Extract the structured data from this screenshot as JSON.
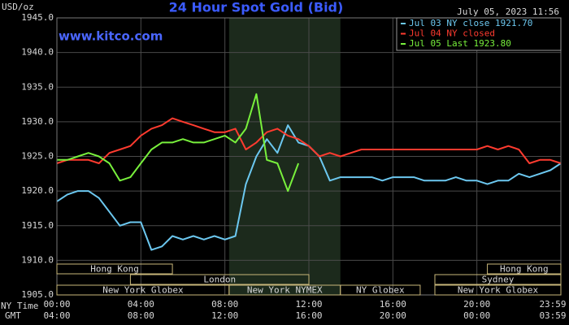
{
  "chart_data": {
    "type": "line",
    "title": "24 Hour Spot Gold (Bid)",
    "subtitle": "July 05, 2023 11:56",
    "y_label": "USD/oz",
    "watermark": "www.kitco.com",
    "x_row_labels": [
      "NY Time",
      "GMT"
    ],
    "xlim": [
      0,
      24
    ],
    "xticks": [
      {
        "value": 0,
        "label": "00:00"
      },
      {
        "value": 4,
        "label": "04:00"
      },
      {
        "value": 8,
        "label": "08:00"
      },
      {
        "value": 12,
        "label": "12:00"
      },
      {
        "value": 16,
        "label": "16:00"
      },
      {
        "value": 20,
        "label": "20:00"
      },
      {
        "value": 24,
        "label": "23:59"
      }
    ],
    "x2ticks": [
      {
        "value": 0,
        "label": "04:00"
      },
      {
        "value": 4,
        "label": "08:00"
      },
      {
        "value": 8,
        "label": "12:00"
      },
      {
        "value": 12,
        "label": "16:00"
      },
      {
        "value": 16,
        "label": "20:00"
      },
      {
        "value": 20,
        "label": "00:00"
      },
      {
        "value": 24,
        "label": "03:59"
      }
    ],
    "ylim": [
      1905,
      1945
    ],
    "yticks": [
      {
        "value": 1905,
        "label": "1905.0"
      },
      {
        "value": 1910,
        "label": "1910.0"
      },
      {
        "value": 1915,
        "label": "1915.0"
      },
      {
        "value": 1920,
        "label": "1920.0"
      },
      {
        "value": 1925,
        "label": "1925.0"
      },
      {
        "value": 1930,
        "label": "1930.0"
      },
      {
        "value": 1935,
        "label": "1935.0"
      },
      {
        "value": 1940,
        "label": "1940.0"
      },
      {
        "value": 1945,
        "label": "1945.0"
      }
    ],
    "grid": true,
    "legend": "top-right",
    "x": [
      0,
      0.5,
      1,
      1.5,
      2,
      2.5,
      3,
      3.5,
      4,
      4.5,
      5,
      5.5,
      6,
      6.5,
      7,
      7.5,
      8,
      8.5,
      9,
      9.5,
      10,
      10.5,
      11,
      11.5,
      12,
      12.5,
      13,
      13.5,
      14,
      14.5,
      15,
      15.5,
      16,
      16.5,
      17,
      17.5,
      18,
      18.5,
      19,
      19.5,
      20,
      20.5,
      21,
      21.5,
      22,
      22.5,
      23,
      23.5,
      24
    ],
    "series": [
      {
        "name": "Jul 03 NY close 1921.70",
        "color": "#6cc8f0",
        "values": [
          1918.5,
          1919.5,
          1920,
          1920,
          1919,
          1917,
          1915,
          1915.5,
          1915.5,
          1911.5,
          1912,
          1913.5,
          1913,
          1913.5,
          1913,
          1913.5,
          1913,
          1913.5,
          1921,
          1925,
          1927.5,
          1925.5,
          1929.5,
          1927,
          1926.5,
          1925,
          1921.5,
          1922,
          1922,
          1922,
          1922,
          1921.5,
          1922,
          1922,
          1922,
          1921.5,
          1921.5,
          1921.5,
          1922,
          1921.5,
          1921.5,
          1921,
          1921.5,
          1921.5,
          1922.5,
          1922,
          1922.5,
          1923,
          1924
        ]
      },
      {
        "name": "Jul 04 NY closed",
        "color": "#ff3b2f",
        "values": [
          1924,
          1924.5,
          1924.5,
          1924.5,
          1924,
          1925.5,
          1926,
          1926.5,
          1928,
          1929,
          1929.5,
          1930.5,
          1930,
          1929.5,
          1929,
          1928.5,
          1928.5,
          1929,
          1926,
          1927,
          1928.5,
          1929,
          1928,
          1927.5,
          1926.5,
          1925,
          1925.5,
          1925,
          1925.5,
          1926,
          1926,
          1926,
          1926,
          1926,
          1926,
          1926,
          1926,
          1926,
          1926,
          1926,
          1926,
          1926.5,
          1926,
          1926.5,
          1926,
          1924,
          1924.5,
          1924.5,
          1924
        ]
      },
      {
        "name": "Jul 05 Last 1923.80",
        "color": "#78f03c",
        "values": [
          1924.5,
          1924.5,
          1925,
          1925.5,
          1925,
          1924,
          1921.5,
          1922,
          1924,
          1926,
          1927,
          1927,
          1927.5,
          1927,
          1927,
          1927.5,
          1928,
          1927,
          1929,
          1934,
          1924.5,
          1924,
          1920,
          1924,
          null,
          null,
          null,
          null,
          null,
          null,
          null,
          null,
          null,
          null,
          null,
          null,
          null,
          null,
          null,
          null,
          null,
          null,
          null,
          null,
          null,
          null,
          null,
          null,
          null
        ]
      }
    ],
    "sessions": [
      [
        {
          "label": "Hong Kong",
          "start": 0,
          "end": 5.5
        },
        {
          "label": "Hong Kong",
          "start": 20.5,
          "end": 24
        }
      ],
      [
        {
          "label": "London",
          "start": 3.5,
          "end": 12
        },
        {
          "label": "Sydney",
          "start": 18,
          "end": 24
        }
      ],
      [
        {
          "label": "New York Globex",
          "start": 0,
          "end": 8.2
        },
        {
          "label": "New York NYMEX",
          "start": 8.2,
          "end": 13.5
        },
        {
          "label": "NY Globex",
          "start": 13.5,
          "end": 17.3
        },
        {
          "label": "New York Globex",
          "start": 18,
          "end": 24
        }
      ]
    ]
  }
}
